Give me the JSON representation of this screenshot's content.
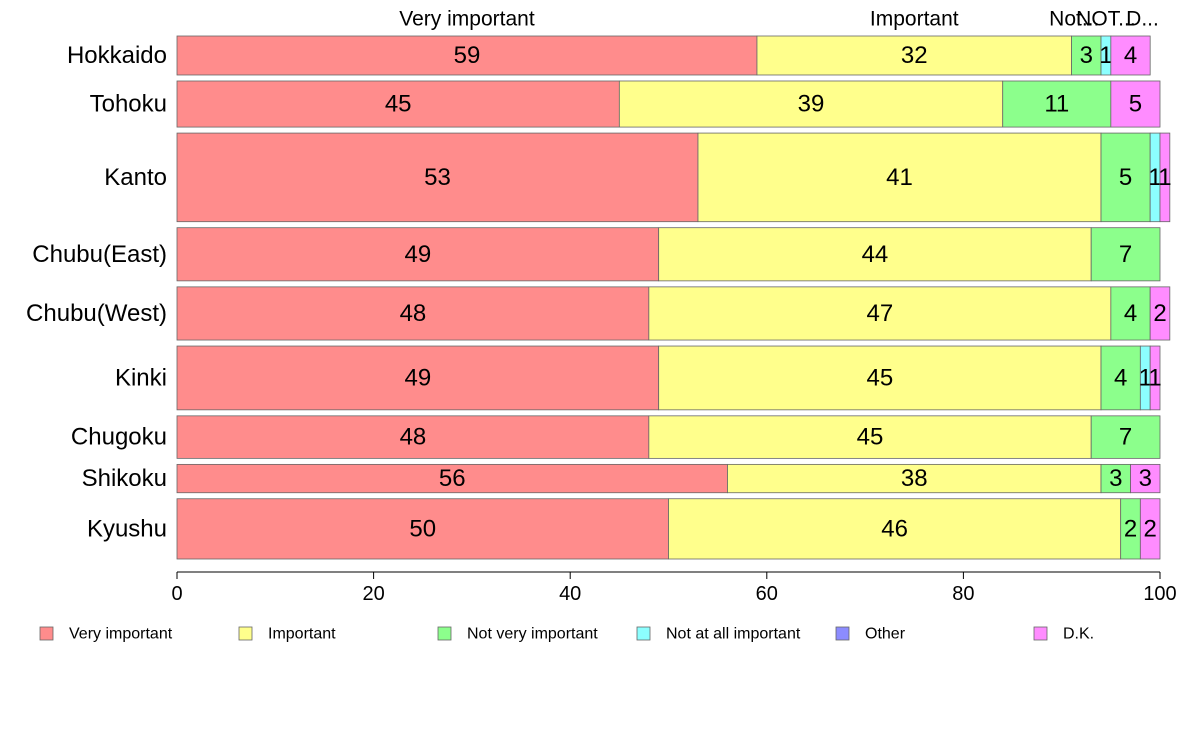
{
  "chart_data": {
    "type": "bar",
    "orientation": "horizontal",
    "stacked": true,
    "categories": [
      "Hokkaido",
      "Tohoku",
      "Kanto",
      "Chubu(East)",
      "Chubu(West)",
      "Kinki",
      "Chugoku",
      "Shikoku",
      "Kyushu"
    ],
    "series": [
      {
        "name": "Very important",
        "color": "#ff8c8c",
        "values": [
          59,
          45,
          53,
          49,
          48,
          49,
          48,
          56,
          50
        ]
      },
      {
        "name": "Important",
        "color": "#ffff8c",
        "values": [
          32,
          39,
          41,
          44,
          47,
          45,
          45,
          38,
          46
        ]
      },
      {
        "name": "Not very important",
        "color": "#8cff8c",
        "values": [
          3,
          11,
          5,
          7,
          4,
          4,
          7,
          3,
          2
        ]
      },
      {
        "name": "Not at all important",
        "color": "#8cffff",
        "values": [
          1,
          0,
          1,
          0,
          0,
          1,
          0,
          0,
          0
        ]
      },
      {
        "name": "Other",
        "color": "#8c8cff",
        "values": [
          0,
          0,
          0,
          0,
          0,
          0,
          0,
          0,
          0
        ]
      },
      {
        "name": "D.K.",
        "color": "#ff8cff",
        "values": [
          4,
          5,
          1,
          0,
          2,
          1,
          0,
          3,
          2
        ]
      }
    ],
    "bar_weights": [
      11,
      13,
      25,
      15,
      15,
      18,
      12,
      8,
      17
    ],
    "top_labels": [
      "Very important",
      "Important",
      "Not...",
      "NOT...",
      "D..."
    ],
    "xlim": [
      0,
      100
    ],
    "xticks": [
      0,
      20,
      40,
      60,
      80,
      100
    ],
    "grid": false,
    "legend_position": "bottom",
    "xlabel": "",
    "ylabel": ""
  }
}
